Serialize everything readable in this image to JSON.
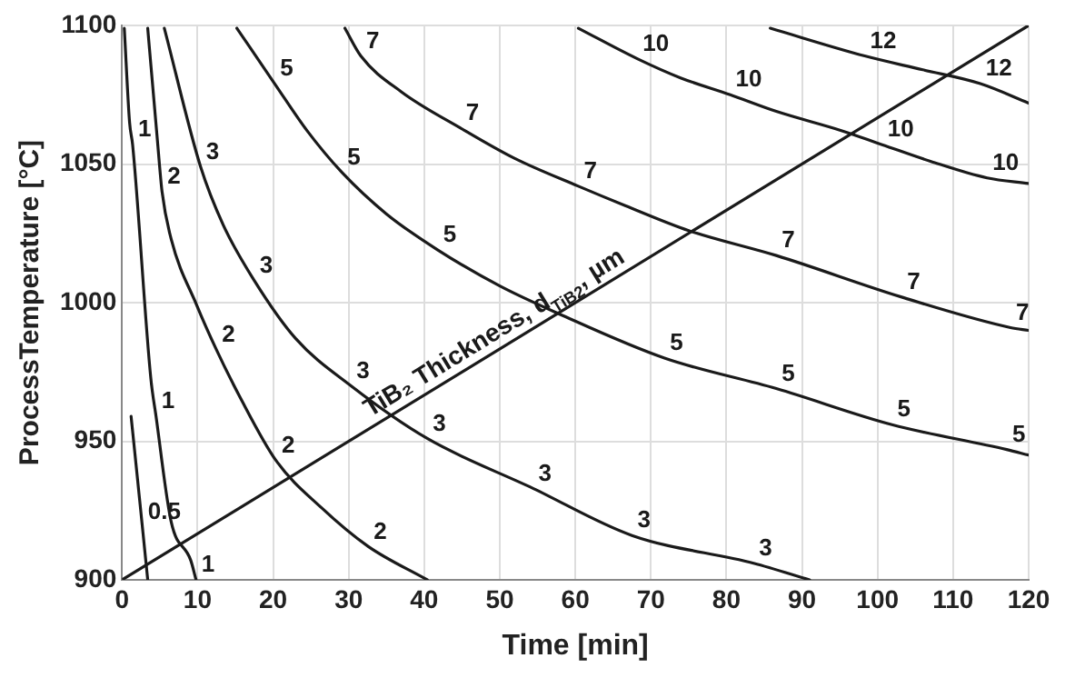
{
  "chart_data": {
    "type": "line",
    "xlabel": "Time [min]",
    "ylabel": "ProcessTemperature [°C]",
    "xlim": [
      0,
      120
    ],
    "xticks": [
      0,
      10,
      20,
      30,
      40,
      50,
      60,
      70,
      80,
      90,
      100,
      110,
      120
    ],
    "ylim": [
      900,
      1100
    ],
    "yticks": [
      900,
      950,
      1000,
      1050,
      1100
    ],
    "grid": true,
    "legend": false,
    "marker": "none",
    "line_style": "solid",
    "series": [
      {
        "color": "#1a1a1a",
        "x": [
          1.2,
          2.7,
          3.4
        ],
        "values": [
          959,
          919,
          900
        ]
      },
      {
        "color": "#1a1a1a",
        "x": [
          0.3,
          1.0,
          1.4,
          3.8,
          4.5,
          6.5,
          9.1,
          9.8
        ],
        "values": [
          1099,
          1065,
          1057,
          973,
          959,
          921,
          907,
          900
        ]
      },
      {
        "color": "#1a1a1a",
        "x": [
          3.4,
          4.7,
          5.3,
          6.5,
          9.9,
          12.5,
          15.6,
          20.4,
          26.4,
          32.6,
          40.4
        ],
        "values": [
          1099,
          1058,
          1040,
          1023,
          999,
          983,
          966,
          943,
          926,
          912,
          900
        ]
      },
      {
        "color": "#1a1a1a",
        "x": [
          5.6,
          10.4,
          13.4,
          17.5,
          23,
          30.3,
          40.4,
          54.4,
          67.5,
          83.6,
          91
        ],
        "values": [
          1099,
          1049,
          1028,
          1008,
          987,
          970,
          951,
          933,
          916,
          906,
          900
        ]
      },
      {
        "color": "#1a1a1a",
        "x": [
          15.2,
          20.2,
          24.5,
          29.1,
          35,
          41.8,
          50,
          57.8,
          71.8,
          86.6,
          101.9,
          117.1,
          120
        ],
        "values": [
          1099,
          1079,
          1062,
          1047,
          1032,
          1019,
          1006,
          996,
          980,
          969,
          956,
          947,
          945
        ]
      },
      {
        "color": "#1a1a1a",
        "x": [
          29.5,
          31.6,
          37,
          44.8,
          52,
          60.4,
          66.6,
          75,
          86.6,
          103.2,
          117.6,
          120
        ],
        "values": [
          1099,
          1089,
          1076,
          1063,
          1052,
          1042,
          1035,
          1026,
          1017,
          1002,
          991,
          990
        ]
      },
      {
        "color": "#1a1a1a",
        "x": [
          60.4,
          68.2,
          74,
          80.5,
          86.6,
          95.3,
          100.6,
          107,
          114.5,
          120
        ],
        "values": [
          1099,
          1088,
          1081,
          1075,
          1069,
          1062,
          1057,
          1051,
          1045,
          1043
        ]
      },
      {
        "color": "#1a1a1a",
        "x": [
          85.8,
          98.3,
          106,
          113.6,
          120
        ],
        "values": [
          1099,
          1089,
          1084,
          1079,
          1072
        ]
      },
      {
        "name": "TiB₂ Thickness, d$_{TiB2}$, µm",
        "color": "#1a1a1a",
        "x": [
          0,
          120
        ],
        "values": [
          900,
          1100
        ]
      }
    ],
    "annotations": [
      {
        "text": "0.5",
        "x": 2.7,
        "y": 919
      },
      {
        "text": "1",
        "x": 1.4,
        "y": 1057
      },
      {
        "text": "1",
        "x": 4.5,
        "y": 959
      },
      {
        "text": "1",
        "x": 9.8,
        "y": 900
      },
      {
        "text": "2",
        "x": 5.3,
        "y": 1040
      },
      {
        "text": "2",
        "x": 12.5,
        "y": 983
      },
      {
        "text": "2",
        "x": 20.4,
        "y": 943
      },
      {
        "text": "2",
        "x": 32.6,
        "y": 912
      },
      {
        "text": "3",
        "x": 10.4,
        "y": 1049
      },
      {
        "text": "3",
        "x": 17.5,
        "y": 1008
      },
      {
        "text": "3",
        "x": 30.3,
        "y": 970
      },
      {
        "text": "3",
        "x": 40.4,
        "y": 951
      },
      {
        "text": "3",
        "x": 54.4,
        "y": 933
      },
      {
        "text": "3",
        "x": 67.5,
        "y": 916
      },
      {
        "text": "3",
        "x": 83.6,
        "y": 906
      },
      {
        "text": "5",
        "x": 20.2,
        "y": 1079
      },
      {
        "text": "5",
        "x": 29.1,
        "y": 1047
      },
      {
        "text": "5",
        "x": 41.8,
        "y": 1019
      },
      {
        "text": "5",
        "x": 71.8,
        "y": 980
      },
      {
        "text": "5",
        "x": 86.6,
        "y": 969
      },
      {
        "text": "5",
        "x": 101.9,
        "y": 956
      },
      {
        "text": "5",
        "x": 117.1,
        "y": 947
      },
      {
        "text": "7",
        "x": 31.6,
        "y": 1089
      },
      {
        "text": "7",
        "x": 44.8,
        "y": 1063
      },
      {
        "text": "7",
        "x": 60.4,
        "y": 1042
      },
      {
        "text": "7",
        "x": 86.6,
        "y": 1017
      },
      {
        "text": "7",
        "x": 103.2,
        "y": 1002
      },
      {
        "text": "7",
        "x": 117.6,
        "y": 991
      },
      {
        "text": "10",
        "x": 68.2,
        "y": 1088
      },
      {
        "text": "10",
        "x": 80.5,
        "y": 1075
      },
      {
        "text": "10",
        "x": 100.6,
        "y": 1057
      },
      {
        "text": "10",
        "x": 114.5,
        "y": 1045
      },
      {
        "text": "12",
        "x": 98.3,
        "y": 1089
      },
      {
        "text": "12",
        "x": 113.6,
        "y": 1079
      }
    ]
  }
}
